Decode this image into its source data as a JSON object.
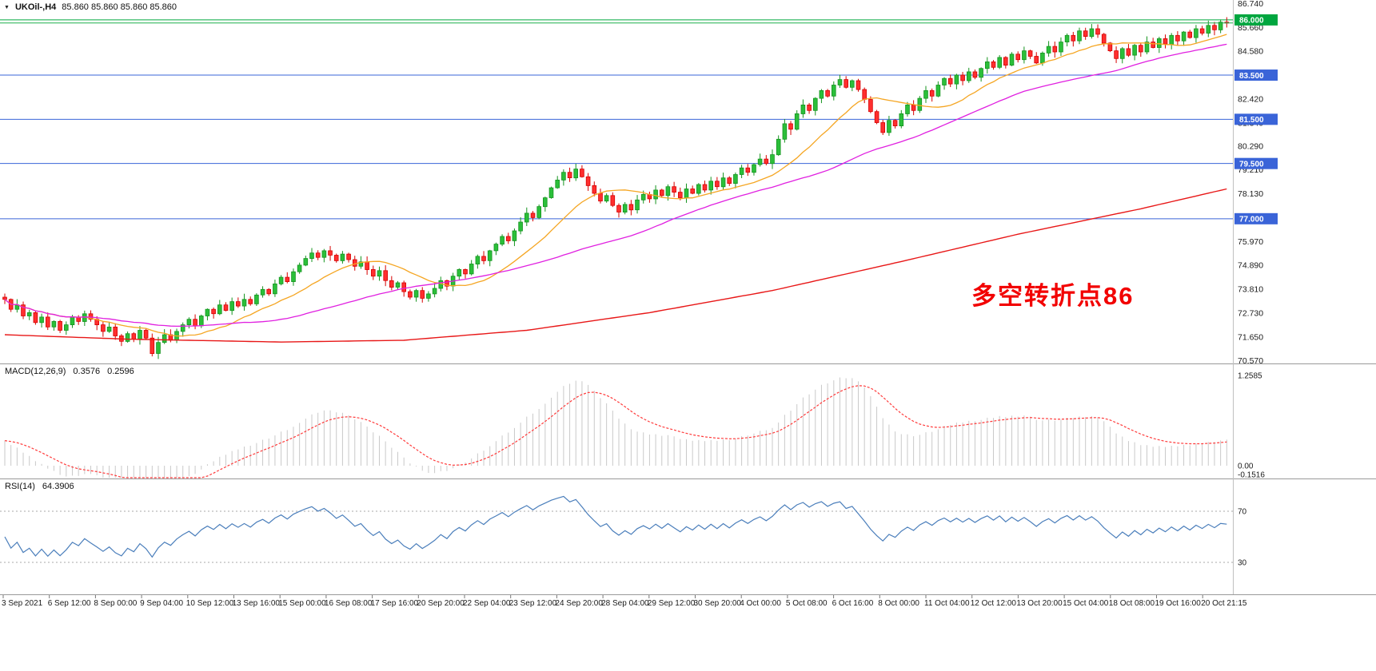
{
  "header": {
    "marker": "▼",
    "title": "UKOil-,H4",
    "ohlc": "85.860 85.860 85.860 85.860"
  },
  "indicators": {
    "macd": {
      "name": "MACD(12,26,9)",
      "main_value": "0.3576",
      "signal_value": "0.2596",
      "axis_labels": [
        "1.2585",
        "0.00",
        "-0.1516"
      ],
      "axis_values": [
        1.2585,
        0,
        -0.1516
      ]
    },
    "rsi": {
      "name": "RSI(14)",
      "value": "64.3906",
      "levels": [
        70,
        30
      ]
    }
  },
  "annotation": {
    "text": "多空转折点86",
    "color": "#f20000"
  },
  "colors": {
    "bull": "#2bbf3a",
    "bull_border": "#15941f",
    "bear": "#ff2f2f",
    "bear_border": "#d60000",
    "ma_fast": "#f5a623",
    "ma_mid": "#e020e0",
    "ma_slow": "#e81717",
    "line_blue": "#3a64d8",
    "line_green": "#00a63f",
    "macd_hist": "#c9c9c9",
    "macd_signal": "#ff3b3b",
    "rsi_line": "#4a7ebb",
    "axis_text": "#1a1a1a",
    "separator": "#9a9a9a"
  },
  "chart_data": {
    "type": "candlestick",
    "symbol": "UKOil-",
    "timeframe": "H4",
    "current_price": 85.86,
    "open_first": 73.45,
    "closes": [
      73.35,
      72.9,
      73.1,
      72.6,
      72.75,
      72.3,
      72.55,
      72.1,
      72.35,
      71.95,
      72.2,
      72.55,
      72.35,
      72.7,
      72.45,
      72.2,
      71.9,
      72.1,
      71.7,
      71.45,
      71.8,
      71.55,
      71.95,
      71.6,
      70.9,
      71.4,
      71.75,
      71.5,
      71.9,
      72.2,
      72.45,
      72.15,
      72.6,
      72.9,
      72.7,
      73.1,
      72.85,
      73.25,
      73.05,
      73.35,
      73.15,
      73.55,
      73.8,
      73.6,
      74.05,
      74.35,
      74.15,
      74.6,
      74.9,
      75.2,
      75.45,
      75.25,
      75.55,
      75.35,
      75.1,
      75.4,
      75.15,
      74.85,
      75.05,
      74.7,
      74.4,
      74.65,
      74.2,
      73.9,
      74.1,
      73.7,
      73.45,
      73.75,
      73.4,
      73.6,
      73.85,
      74.2,
      73.95,
      74.4,
      74.7,
      74.5,
      74.95,
      75.3,
      75.1,
      75.55,
      75.85,
      76.2,
      76.0,
      76.45,
      76.85,
      77.25,
      77.05,
      77.55,
      77.95,
      78.4,
      78.75,
      79.1,
      78.85,
      79.25,
      78.9,
      78.5,
      78.15,
      77.8,
      78.05,
      77.6,
      77.3,
      77.65,
      77.4,
      77.85,
      78.1,
      77.9,
      78.3,
      78.05,
      78.45,
      78.2,
      77.95,
      78.35,
      78.15,
      78.55,
      78.3,
      78.7,
      78.45,
      78.85,
      78.6,
      79.0,
      79.3,
      79.1,
      79.45,
      79.7,
      79.5,
      79.9,
      80.6,
      81.3,
      81.05,
      81.75,
      82.15,
      81.9,
      82.45,
      82.8,
      82.55,
      83.05,
      83.3,
      82.95,
      83.25,
      82.85,
      82.4,
      81.85,
      81.35,
      80.9,
      81.45,
      81.2,
      81.75,
      82.15,
      81.9,
      82.45,
      82.8,
      82.55,
      83.05,
      83.35,
      83.1,
      83.5,
      83.25,
      83.65,
      83.4,
      83.8,
      84.1,
      83.85,
      84.3,
      83.95,
      84.45,
      84.2,
      84.6,
      84.35,
      84.05,
      84.5,
      84.8,
      84.55,
      85.0,
      85.3,
      85.05,
      85.5,
      85.25,
      85.6,
      85.35,
      84.95,
      84.6,
      84.25,
      84.7,
      84.4,
      84.85,
      84.55,
      85.0,
      84.75,
      85.15,
      84.9,
      85.3,
      85.05,
      85.45,
      85.2,
      85.6,
      85.4,
      85.75,
      85.55,
      85.9,
      85.86
    ],
    "y_axis": {
      "min": 70.45,
      "max": 86.9,
      "ticks": [
        "86.740",
        "85.660",
        "84.580",
        "83.500",
        "82.420",
        "81.340",
        "80.290",
        "79.210",
        "78.130",
        "77.050",
        "75.970",
        "74.890",
        "73.810",
        "72.730",
        "71.650",
        "70.570"
      ]
    },
    "horizontal_lines": [
      {
        "price": 86.0,
        "label": "86.000",
        "color": "#00a63f"
      },
      {
        "price": 83.5,
        "label": "83.500",
        "color": "#3a64d8"
      },
      {
        "price": 81.5,
        "label": "81.500",
        "color": "#3a64d8"
      },
      {
        "price": 79.5,
        "label": "79.500",
        "color": "#3a64d8"
      },
      {
        "price": 77.0,
        "label": "77.000",
        "color": "#3a64d8"
      }
    ],
    "ma_periods": {
      "fast": 14,
      "mid": 40
    },
    "ma_slow_anchors": [
      [
        0,
        71.75
      ],
      [
        20,
        71.55
      ],
      [
        45,
        71.42
      ],
      [
        65,
        71.5
      ],
      [
        85,
        71.95
      ],
      [
        105,
        72.75
      ],
      [
        125,
        73.75
      ],
      [
        145,
        75.0
      ],
      [
        165,
        76.3
      ],
      [
        185,
        77.45
      ],
      [
        199,
        78.35
      ]
    ],
    "macd_params": [
      12,
      26,
      9
    ],
    "rsi_period": 14,
    "x_labels": [
      "3 Sep 2021",
      "6 Sep 12:00",
      "8 Sep 00:00",
      "9 Sep 04:00",
      "10 Sep 12:00",
      "13 Sep 16:00",
      "15 Sep 00:00",
      "16 Sep 08:00",
      "17 Sep 16:00",
      "20 Sep 20:00",
      "22 Sep 04:00",
      "23 Sep 12:00",
      "24 Sep 20:00",
      "28 Sep 04:00",
      "29 Sep 12:00",
      "30 Sep 20:00",
      "4 Oct 00:00",
      "5 Oct 08:00",
      "6 Oct 16:00",
      "8 Oct 00:00",
      "11 Oct 04:00",
      "12 Oct 12:00",
      "13 Oct 20:00",
      "15 Oct 04:00",
      "18 Oct 08:00",
      "19 Oct 16:00",
      "20 Oct 21:15"
    ]
  }
}
